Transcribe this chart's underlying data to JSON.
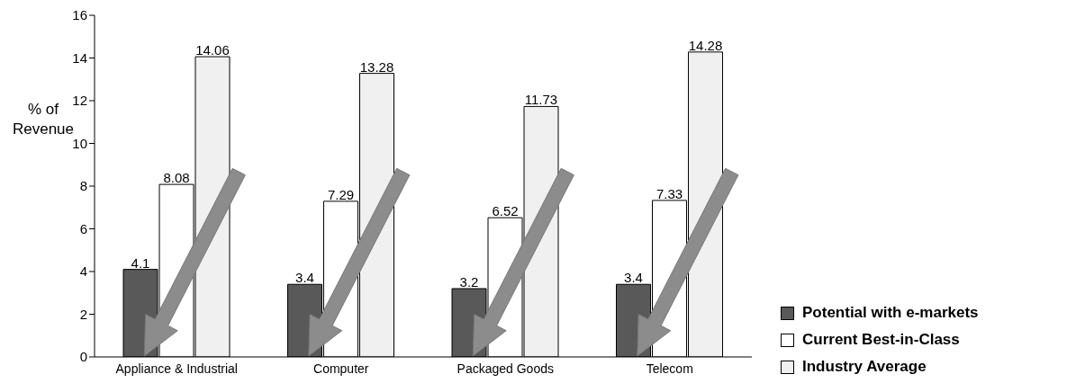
{
  "chart_data": {
    "type": "bar",
    "ylabel": "% of Revenue",
    "categories": [
      "Appliance & Industrial",
      "Computer",
      "Packaged Goods",
      "Telecom"
    ],
    "series": [
      {
        "name": "Potential  with e-markets",
        "color": "#595959",
        "values": [
          4.1,
          3.4,
          3.2,
          3.4
        ]
      },
      {
        "name": "Current Best-in-Class",
        "color": "#ffffff",
        "values": [
          8.08,
          7.29,
          6.52,
          7.33
        ]
      },
      {
        "name": "Industry Average",
        "color": "#f0f0f0",
        "values": [
          14.06,
          13.28,
          11.73,
          14.28
        ]
      }
    ],
    "ylim": [
      0,
      16
    ],
    "yticks": [
      0,
      2,
      4,
      6,
      8,
      10,
      12,
      14,
      16
    ],
    "grid": false,
    "legend": "bottom right",
    "data_labels": true
  }
}
